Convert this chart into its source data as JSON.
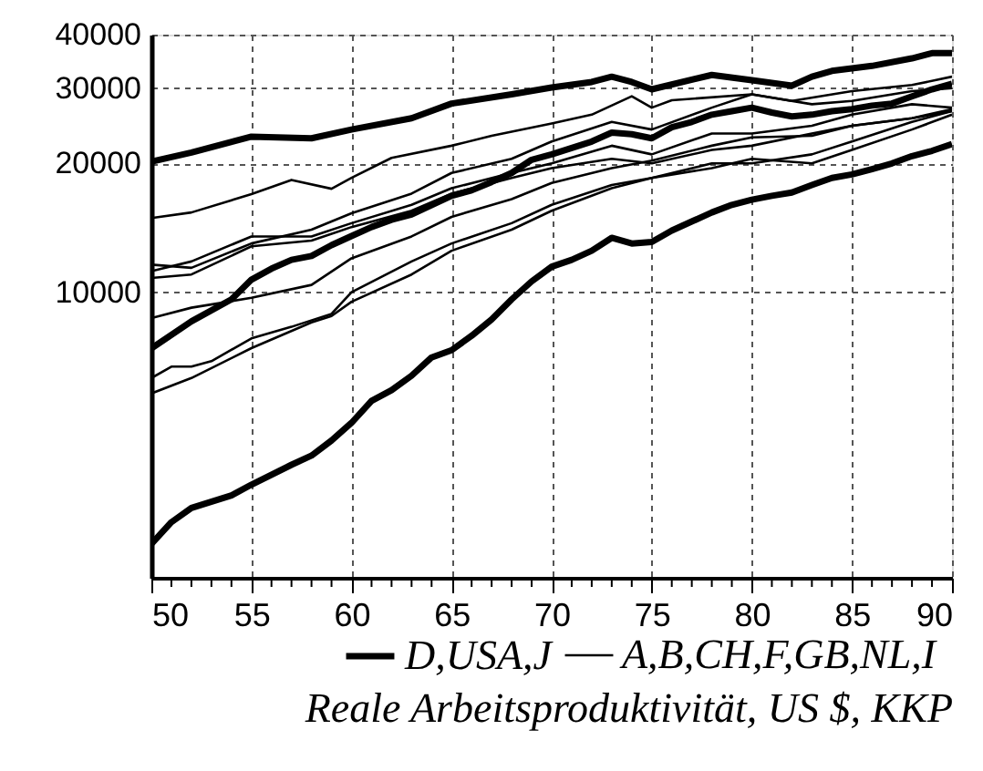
{
  "chart_data": {
    "type": "line",
    "title": "Reale Arbeitsproduktivität, US $, KKP",
    "log": "y",
    "grid": true,
    "legend": "bottom",
    "marker": "none",
    "line_style": "solid",
    "xlim": [
      50,
      90
    ],
    "ylim": [
      2150,
      40000
    ],
    "yticks": [
      10000,
      20000,
      30000,
      40000
    ],
    "xticks": [
      50,
      {
        "value": 51,
        "label": null
      },
      {
        "value": 52,
        "label": null
      },
      {
        "value": 53,
        "label": null
      },
      {
        "value": 54,
        "label": null
      },
      55,
      {
        "value": 56,
        "label": null
      },
      {
        "value": 57,
        "label": null
      },
      {
        "value": 58,
        "label": null
      },
      {
        "value": 59,
        "label": null
      },
      60,
      {
        "value": 61,
        "label": null
      },
      {
        "value": 62,
        "label": null
      },
      {
        "value": 63,
        "label": null
      },
      {
        "value": 64,
        "label": null
      },
      65,
      {
        "value": 66,
        "label": null
      },
      {
        "value": 67,
        "label": null
      },
      {
        "value": 68,
        "label": null
      },
      {
        "value": 69,
        "label": null
      },
      70,
      {
        "value": 71,
        "label": null
      },
      {
        "value": 72,
        "label": null
      },
      {
        "value": 73,
        "label": null
      },
      {
        "value": 74,
        "label": null
      },
      75,
      {
        "value": 76,
        "label": null
      },
      {
        "value": 77,
        "label": null
      },
      {
        "value": 78,
        "label": null
      },
      {
        "value": 79,
        "label": null
      },
      80,
      {
        "value": 81,
        "label": null
      },
      {
        "value": 82,
        "label": null
      },
      {
        "value": 83,
        "label": null
      },
      {
        "value": 84,
        "label": null
      },
      85,
      {
        "value": 86,
        "label": null
      },
      {
        "value": 87,
        "label": null
      },
      {
        "value": 88,
        "label": null
      },
      {
        "value": 89,
        "label": null
      },
      90
    ],
    "series": [
      {
        "name": "D,USA,J",
        "color": "#000000",
        "x": [
          50,
          52,
          55,
          58,
          60,
          63,
          65,
          68,
          70,
          72,
          73,
          74,
          75,
          78,
          80,
          82,
          83,
          84,
          86,
          88,
          89,
          90
        ],
        "values": [
          20200,
          21200,
          23100,
          22900,
          24000,
          25500,
          27600,
          29000,
          30100,
          31000,
          31900,
          31000,
          29800,
          32200,
          31300,
          30400,
          31900,
          32900,
          33800,
          35200,
          36200,
          36200
        ]
      },
      {
        "name": null,
        "color": "#000000",
        "x": [
          50,
          52,
          54,
          55,
          56,
          57,
          58,
          59,
          60,
          61,
          62,
          63,
          65,
          66,
          67,
          68,
          69,
          70,
          72,
          73,
          74,
          75,
          76,
          77,
          78,
          79,
          80,
          81,
          82,
          83,
          84,
          85,
          86,
          87,
          88,
          89,
          90
        ],
        "values": [
          7390,
          8550,
          9620,
          10700,
          11350,
          11900,
          12150,
          12880,
          13530,
          14200,
          14770,
          15200,
          16800,
          17300,
          18100,
          19000,
          20400,
          21000,
          22500,
          23600,
          23400,
          22900,
          24300,
          25000,
          26000,
          26500,
          27000,
          26300,
          25750,
          26000,
          26500,
          26800,
          27300,
          27600,
          28700,
          29800,
          30700
        ]
      },
      {
        "name": null,
        "color": "#000000",
        "x": [
          50,
          51,
          52,
          54,
          55,
          57,
          58,
          59,
          60,
          61,
          62,
          63,
          64,
          65,
          66,
          67,
          68,
          69,
          70,
          71,
          72,
          73,
          74,
          75,
          76,
          77,
          78,
          79,
          80,
          81,
          82,
          83,
          84,
          85,
          86,
          87,
          88,
          89,
          90
        ],
        "values": [
          2580,
          2900,
          3130,
          3350,
          3550,
          3950,
          4150,
          4500,
          4950,
          5570,
          5900,
          6380,
          7040,
          7320,
          7910,
          8640,
          9620,
          10600,
          11470,
          11900,
          12500,
          13400,
          13000,
          13100,
          13930,
          14630,
          15360,
          16000,
          16450,
          16800,
          17100,
          17800,
          18500,
          18850,
          19400,
          20000,
          20800,
          21400,
          22200
        ]
      },
      {
        "name": "A,B,CH,F,GB,NL,I",
        "color": "#000000",
        "x": [
          50,
          52,
          55,
          57,
          59,
          60,
          62,
          65,
          67,
          70,
          72,
          74,
          75,
          76,
          80,
          82,
          85,
          88,
          90
        ],
        "values": [
          14900,
          15360,
          16950,
          18300,
          17450,
          18500,
          20600,
          22000,
          23200,
          24800,
          26000,
          28700,
          27000,
          28100,
          29000,
          28000,
          29500,
          30500,
          31900
        ]
      },
      {
        "name": null,
        "color": "#000000",
        "x": [
          50,
          52,
          55,
          58,
          60,
          63,
          65,
          68,
          70,
          73,
          75,
          78,
          80,
          83,
          85,
          88,
          90
        ],
        "values": [
          11600,
          11400,
          13000,
          14000,
          15300,
          17000,
          19000,
          20500,
          22500,
          25000,
          24000,
          27000,
          29000,
          27500,
          28000,
          29500,
          30000
        ]
      },
      {
        "name": null,
        "color": "#000000",
        "x": [
          50,
          52,
          55,
          58,
          60,
          63,
          65,
          68,
          70,
          73,
          75,
          78,
          80,
          83,
          85,
          88,
          90
        ],
        "values": [
          11200,
          11800,
          13500,
          13500,
          14500,
          16000,
          17500,
          19000,
          20000,
          22000,
          21000,
          23500,
          23500,
          24500,
          26000,
          27500,
          27000
        ]
      },
      {
        "name": null,
        "color": "#000000",
        "x": [
          50,
          52,
          55,
          58,
          60,
          63,
          65,
          68,
          70,
          73,
          75,
          78,
          80,
          83,
          85,
          88,
          90
        ],
        "values": [
          10800,
          11000,
          12800,
          13200,
          14200,
          15500,
          17000,
          18500,
          19500,
          20500,
          20000,
          21500,
          22000,
          23500,
          24500,
          25500,
          26500
        ]
      },
      {
        "name": null,
        "color": "#000000",
        "x": [
          50,
          52,
          55,
          58,
          60,
          63,
          65,
          68,
          70,
          73,
          75,
          78,
          80,
          83,
          85,
          88,
          90
        ],
        "values": [
          8700,
          9200,
          9700,
          10400,
          12000,
          13500,
          15000,
          16500,
          18000,
          19500,
          20300,
          22000,
          23000,
          23200,
          24500,
          25500,
          26800
        ]
      },
      {
        "name": null,
        "color": "#000000",
        "x": [
          50,
          51,
          52,
          53,
          55,
          57,
          59,
          60,
          63,
          65,
          68,
          70,
          73,
          75,
          78,
          80,
          83,
          85,
          88,
          90
        ],
        "values": [
          6300,
          6700,
          6700,
          6900,
          7800,
          8300,
          8900,
          10000,
          11800,
          13000,
          14500,
          16000,
          17800,
          18500,
          20000,
          20000,
          21000,
          22500,
          25000,
          26500
        ]
      },
      {
        "name": null,
        "color": "#000000",
        "x": [
          50,
          52,
          55,
          58,
          59,
          60,
          63,
          65,
          68,
          70,
          73,
          75,
          78,
          80,
          83,
          85,
          88,
          90
        ],
        "values": [
          5800,
          6300,
          7400,
          8500,
          8800,
          9500,
          11000,
          12500,
          14000,
          15500,
          17500,
          18500,
          19500,
          20500,
          20000,
          21500,
          24000,
          26000
        ]
      }
    ]
  }
}
